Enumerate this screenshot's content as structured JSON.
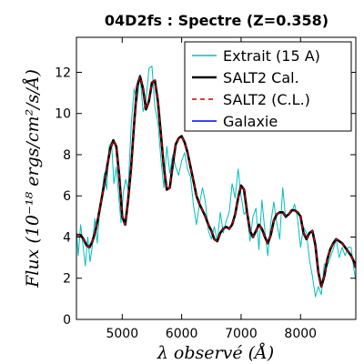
{
  "chart_data": {
    "type": "line",
    "title": "04D2fs : Spectre (Z=0.358)",
    "xlabel": "λ observé (Å)",
    "ylabel": "Flux (10⁻¹⁸ ergs/cm²/s/Å)",
    "xlim": [
      4230,
      8930
    ],
    "ylim": [
      0,
      13.7
    ],
    "xticks": [
      5000,
      6000,
      7000,
      8000
    ],
    "yticks": [
      0,
      2,
      4,
      6,
      8,
      10,
      12
    ],
    "legend_position": "top-right",
    "grid": false,
    "series": [
      {
        "name": "Extrait (15 A)",
        "color": "#00bfbf",
        "style": "solid",
        "x": [
          4230,
          4260,
          4300,
          4340,
          4380,
          4420,
          4460,
          4500,
          4540,
          4580,
          4620,
          4660,
          4700,
          4740,
          4780,
          4820,
          4860,
          4900,
          4940,
          4980,
          5020,
          5060,
          5100,
          5150,
          5200,
          5250,
          5300,
          5350,
          5400,
          5450,
          5500,
          5550,
          5600,
          5650,
          5700,
          5750,
          5800,
          5850,
          5900,
          5950,
          6000,
          6050,
          6100,
          6150,
          6200,
          6250,
          6300,
          6350,
          6400,
          6450,
          6500,
          6550,
          6600,
          6650,
          6700,
          6750,
          6800,
          6850,
          6900,
          6950,
          7000,
          7050,
          7100,
          7150,
          7200,
          7250,
          7300,
          7350,
          7400,
          7450,
          7500,
          7550,
          7600,
          7650,
          7700,
          7750,
          7800,
          7850,
          7900,
          7950,
          8000,
          8050,
          8100,
          8150,
          8200,
          8250,
          8300,
          8350,
          8400,
          8450,
          8500,
          8550,
          8600,
          8650,
          8700,
          8750,
          8800,
          8850,
          8900,
          8930
        ],
        "y": [
          4.3,
          3.1,
          4.6,
          3.6,
          2.6,
          4.0,
          2.8,
          3.6,
          4.9,
          3.7,
          5.3,
          6.2,
          7.1,
          6.3,
          8.4,
          8.6,
          6.6,
          7.4,
          6.0,
          4.7,
          6.2,
          6.8,
          6.3,
          9.4,
          11.2,
          10.6,
          11.9,
          10.1,
          10.6,
          12.2,
          12.3,
          10.3,
          9.6,
          7.8,
          6.4,
          8.4,
          7.1,
          8.0,
          7.4,
          7.0,
          7.7,
          8.1,
          7.3,
          6.9,
          5.5,
          4.6,
          5.6,
          6.4,
          5.7,
          4.3,
          3.9,
          4.5,
          3.8,
          5.2,
          4.2,
          4.8,
          5.2,
          6.6,
          5.9,
          7.3,
          6.0,
          5.1,
          5.3,
          3.8,
          5.0,
          5.4,
          3.4,
          5.8,
          4.3,
          3.1,
          4.7,
          5.7,
          4.7,
          3.9,
          6.4,
          4.9,
          5.1,
          5.2,
          5.6,
          4.9,
          3.5,
          4.5,
          4.2,
          2.9,
          2.1,
          1.1,
          1.6,
          1.2,
          2.7,
          2.6,
          3.0,
          3.4,
          3.9,
          3.0,
          3.5,
          3.1,
          3.5,
          3.5,
          2.4,
          1.9
        ]
      },
      {
        "name": "SALT2 Cal.",
        "color": "#000000",
        "style": "solid",
        "x": [
          4230,
          4300,
          4350,
          4400,
          4450,
          4500,
          4550,
          4600,
          4650,
          4700,
          4750,
          4800,
          4850,
          4900,
          4950,
          5000,
          5050,
          5100,
          5150,
          5200,
          5250,
          5300,
          5350,
          5400,
          5450,
          5500,
          5550,
          5600,
          5650,
          5700,
          5750,
          5800,
          5850,
          5900,
          5950,
          6000,
          6050,
          6100,
          6150,
          6200,
          6250,
          6300,
          6350,
          6400,
          6450,
          6500,
          6550,
          6600,
          6650,
          6700,
          6750,
          6800,
          6850,
          6900,
          6950,
          7000,
          7050,
          7100,
          7150,
          7200,
          7250,
          7300,
          7350,
          7400,
          7450,
          7500,
          7550,
          7600,
          7650,
          7700,
          7750,
          7800,
          7850,
          7900,
          7950,
          8000,
          8050,
          8100,
          8150,
          8200,
          8250,
          8300,
          8350,
          8400,
          8450,
          8500,
          8550,
          8600,
          8650,
          8700,
          8750,
          8800,
          8850,
          8900,
          8930
        ],
        "y": [
          4.1,
          4.1,
          3.9,
          3.6,
          3.5,
          3.8,
          4.3,
          5.0,
          5.8,
          6.6,
          7.5,
          8.3,
          8.7,
          8.4,
          7.0,
          5.0,
          4.6,
          5.8,
          7.4,
          9.5,
          11.3,
          11.8,
          11.2,
          10.2,
          10.6,
          11.5,
          11.6,
          10.6,
          9.0,
          7.4,
          6.3,
          6.4,
          7.5,
          8.5,
          8.8,
          8.9,
          8.6,
          8.1,
          7.4,
          6.7,
          6.0,
          5.6,
          5.3,
          5.0,
          4.6,
          4.3,
          3.9,
          3.8,
          4.2,
          4.4,
          4.5,
          4.4,
          4.6,
          5.1,
          5.9,
          6.5,
          6.3,
          5.2,
          4.3,
          4.0,
          4.3,
          4.6,
          4.4,
          4.0,
          3.7,
          4.1,
          4.8,
          5.1,
          5.2,
          5.2,
          5.0,
          5.1,
          5.3,
          5.3,
          5.2,
          5.0,
          4.2,
          3.9,
          4.2,
          4.3,
          3.6,
          2.3,
          1.6,
          2.1,
          2.9,
          3.4,
          3.7,
          3.9,
          3.8,
          3.7,
          3.5,
          3.3,
          3.1,
          2.8,
          2.5
        ]
      },
      {
        "name": "SALT2 (C.L.)",
        "color": "#cc0000",
        "style": "dashed",
        "x": [
          4230,
          4300,
          4350,
          4400,
          4450,
          4500,
          4550,
          4600,
          4650,
          4700,
          4750,
          4800,
          4850,
          4900,
          4950,
          5000,
          5050,
          5100,
          5150,
          5200,
          5250,
          5300,
          5350,
          5400,
          5450,
          5500,
          5550,
          5600,
          5650,
          5700,
          5750,
          5800,
          5850,
          5900,
          5950,
          6000,
          6050,
          6100,
          6150,
          6200,
          6250,
          6300,
          6350,
          6400,
          6450,
          6500,
          6550,
          6600,
          6650,
          6700,
          6750,
          6800,
          6850,
          6900,
          6950,
          7000,
          7050,
          7100,
          7150,
          7200,
          7250,
          7300,
          7350,
          7400,
          7450,
          7500,
          7550,
          7600,
          7650,
          7700,
          7750,
          7800,
          7850,
          7900,
          7950,
          8000,
          8050,
          8100,
          8150,
          8200,
          8250,
          8300,
          8350,
          8400,
          8450,
          8500,
          8550,
          8600,
          8650,
          8700,
          8750,
          8800,
          8850,
          8900,
          8930
        ],
        "y": [
          4.1,
          4.1,
          3.9,
          3.6,
          3.5,
          3.8,
          4.3,
          5.0,
          5.8,
          6.6,
          7.5,
          8.3,
          8.7,
          8.4,
          7.0,
          5.0,
          4.6,
          5.8,
          7.4,
          9.5,
          11.3,
          11.8,
          11.2,
          10.2,
          10.6,
          11.5,
          11.6,
          10.6,
          9.0,
          7.4,
          6.3,
          6.4,
          7.5,
          8.5,
          8.8,
          8.9,
          8.6,
          8.1,
          7.4,
          6.7,
          6.0,
          5.6,
          5.3,
          5.0,
          4.6,
          4.3,
          3.9,
          3.8,
          4.2,
          4.4,
          4.5,
          4.4,
          4.6,
          5.1,
          5.9,
          6.5,
          6.3,
          5.2,
          4.3,
          4.0,
          4.3,
          4.6,
          4.4,
          4.0,
          3.7,
          4.1,
          4.8,
          5.1,
          5.2,
          5.2,
          5.0,
          5.1,
          5.3,
          5.3,
          5.2,
          5.0,
          4.2,
          3.9,
          4.2,
          4.3,
          3.6,
          2.3,
          1.6,
          2.1,
          2.9,
          3.4,
          3.7,
          3.9,
          3.8,
          3.7,
          3.5,
          3.3,
          3.1,
          2.8,
          2.5
        ]
      },
      {
        "name": "Galaxie",
        "color": "#0000ff",
        "style": "solid",
        "x": [],
        "y": []
      }
    ]
  }
}
